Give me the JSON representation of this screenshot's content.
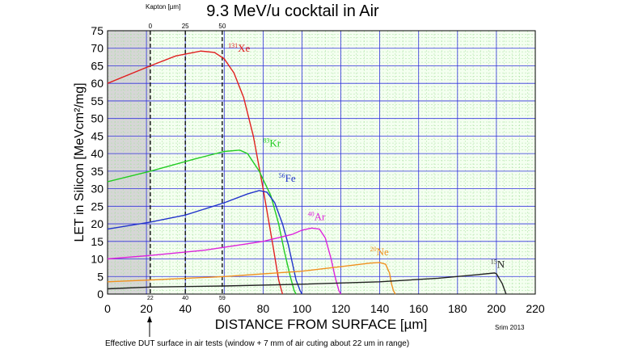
{
  "chart_data": {
    "type": "line",
    "title": "9.3 MeV/u cocktail in Air",
    "xlabel": "DISTANCE FROM SURFACE [µm]",
    "ylabel": "LET in Silicon [MeVcm²/mg]",
    "xlim": [
      0,
      220
    ],
    "ylim": [
      0,
      75
    ],
    "x_ticks": [
      0,
      20,
      40,
      60,
      80,
      100,
      120,
      140,
      160,
      180,
      200,
      220
    ],
    "y_ticks": [
      0,
      5,
      10,
      15,
      20,
      25,
      30,
      35,
      40,
      45,
      50,
      55,
      60,
      65,
      70,
      75
    ],
    "grid": true,
    "shaded_region": [
      0,
      22
    ],
    "secondary_axis": {
      "label": "Kapton [µm]",
      "ticks": [
        {
          "label": "0",
          "x": 22
        },
        {
          "label": "25",
          "x": 40
        },
        {
          "label": "50",
          "x": 59
        }
      ]
    },
    "dashed_markers": [
      {
        "x": 22,
        "label": "22"
      },
      {
        "x": 40,
        "label": "40"
      },
      {
        "x": 59,
        "label": "59"
      }
    ],
    "series": [
      {
        "name": "Xe",
        "mass": "131",
        "color": "#e02020",
        "x": [
          0,
          22,
          35,
          48,
          55,
          60,
          65,
          70,
          75,
          80,
          85,
          88,
          90
        ],
        "y": [
          60,
          65,
          67.8,
          69.2,
          68.8,
          67,
          63,
          56,
          45,
          30,
          14,
          4,
          0
        ]
      },
      {
        "name": "Kr",
        "mass": "83",
        "color": "#22cc22",
        "x": [
          0,
          22,
          45,
          60,
          68,
          72,
          78,
          84,
          88,
          91,
          94,
          96,
          97
        ],
        "y": [
          32,
          35,
          38.5,
          40.6,
          41,
          40,
          35,
          28,
          20,
          12,
          5,
          1,
          0
        ]
      },
      {
        "name": "Fe",
        "mass": "56",
        "color": "#2233cc",
        "x": [
          0,
          22,
          40,
          60,
          72,
          78,
          82,
          86,
          90,
          93,
          95,
          97,
          99,
          100
        ],
        "y": [
          18.5,
          20.5,
          22.5,
          26,
          28.5,
          29.5,
          29,
          26,
          20,
          14,
          9,
          4,
          1,
          0
        ]
      },
      {
        "name": "Ar",
        "mass": "40",
        "color": "#dd22dd",
        "x": [
          0,
          22,
          50,
          80,
          95,
          100,
          105,
          109,
          112,
          115,
          117,
          119,
          120
        ],
        "y": [
          10,
          11,
          12.5,
          15,
          17,
          18.2,
          18.8,
          18.5,
          16,
          10,
          5,
          1,
          0
        ]
      },
      {
        "name": "Ne",
        "mass": "20",
        "color": "#f0901e",
        "x": [
          0,
          22,
          60,
          100,
          120,
          135,
          140,
          143,
          145,
          146,
          147,
          148
        ],
        "y": [
          3.5,
          4,
          5,
          6.5,
          7.8,
          8.8,
          9,
          8.5,
          6,
          3,
          1,
          0
        ]
      },
      {
        "name": "N",
        "mass": "15",
        "color": "#222222",
        "x": [
          0,
          22,
          60,
          100,
          140,
          170,
          190,
          199,
          200,
          203,
          205
        ],
        "y": [
          1.5,
          2,
          2.3,
          2.8,
          3.5,
          4.5,
          5.5,
          6,
          5.8,
          3,
          0
        ]
      }
    ],
    "annotations": {
      "footer_note": "Effective DUT surface in air tests (window + 7 mm of air cuting about 22 um in range)",
      "credit": "Srim 2013"
    }
  }
}
